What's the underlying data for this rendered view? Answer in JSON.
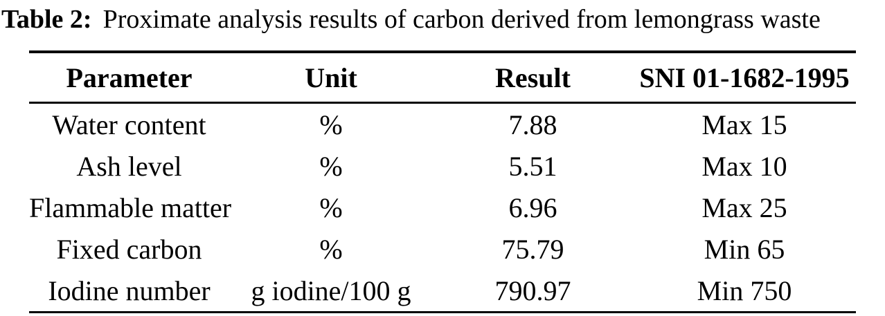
{
  "caption": {
    "label": "Table 2:",
    "text": "Proximate analysis results of carbon derived from lemongrass waste"
  },
  "table": {
    "columns": [
      "Parameter",
      "Unit",
      "Result",
      "SNI 01-1682-1995"
    ],
    "rows": [
      {
        "parameter": "Water content",
        "unit": "%",
        "result": "7.88",
        "sni": "Max 15"
      },
      {
        "parameter": "Ash level",
        "unit": "%",
        "result": "5.51",
        "sni": "Max 10"
      },
      {
        "parameter": "Flammable matter",
        "unit": "%",
        "result": "6.96",
        "sni": "Max 25"
      },
      {
        "parameter": "Fixed carbon",
        "unit": "%",
        "result": "75.79",
        "sni": "Min 65"
      },
      {
        "parameter": "Iodine number",
        "unit": "g iodine/100 g",
        "result": "790.97",
        "sni": "Min 750"
      }
    ]
  },
  "colors": {
    "text": "#000000",
    "background": "#ffffff",
    "rule": "#000000"
  }
}
